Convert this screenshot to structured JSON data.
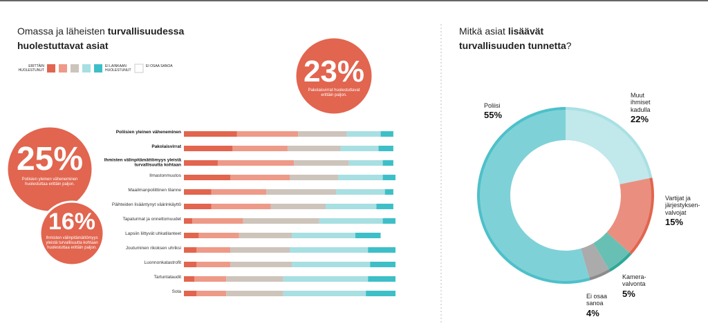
{
  "chart_data": [
    {
      "type": "stacked-bar",
      "title": [
        "Omassa ja läheisten",
        "turvallisuudessa",
        "huolestuttavat asiat"
      ],
      "categories": [
        "Poliisien yleinen väheneminen",
        "Pakolaisvirrat",
        "Ihmisten välinpitämättömyys yleistä turvallisuutta kohtaan",
        "Ilmastonmuutos",
        "Maailmanpoliittinen tilanne",
        "Päihteiden lisääntynyt väärinkäyttö",
        "Tapaturmat ja onnettomuudet",
        "Lapsiin liittyvät uhkatilanteet",
        "Joutuminen rikoksen uhriksi",
        "Luonnonkatastrofit",
        "Tartuntataudit",
        "Sota"
      ],
      "series": [
        {
          "name": "ERITTÄIN HUOLESTUNUT",
          "color": "#e2654f",
          "values": [
            25,
            23,
            16,
            22,
            13,
            13,
            4,
            7,
            6,
            6,
            5,
            6
          ]
        },
        {
          "color": "#ee9a88",
          "values": [
            29,
            26,
            36,
            28,
            26,
            28,
            24,
            19,
            16,
            16,
            15,
            14
          ]
        },
        {
          "color": "#cdc4bb",
          "values": [
            23,
            25,
            26,
            23,
            33,
            26,
            36,
            25,
            28,
            29,
            27,
            27
          ]
        },
        {
          "color": "#a7dfe2",
          "values": [
            16,
            18,
            16,
            21,
            23,
            24,
            30,
            30,
            37,
            37,
            40,
            39
          ]
        },
        {
          "name": "EI LAINKAAN HUOLESTUNUT",
          "color": "#3ebfc8",
          "values": [
            6,
            7,
            5,
            6,
            4,
            8,
            6,
            12,
            13,
            12,
            13,
            14
          ]
        },
        {
          "name": "EI OSAA SANOA",
          "color": "#ffffff",
          "values": [
            1,
            1,
            1,
            0,
            1,
            1,
            0,
            7,
            0,
            0,
            0,
            0
          ]
        }
      ],
      "annotations": [
        {
          "big": "23%",
          "text": "Pakolaisvirrat huolestuttavat erittäin paljon."
        },
        {
          "big": "25%",
          "text": "Poliisien yleinen väheneminen huolestuttaa erittäin paljon."
        },
        {
          "big": "16%",
          "text": "Ihmisten välinpitämättömyys yleistä turvallisuutta kohtaan huolestuttaa erittäin paljon."
        }
      ]
    },
    {
      "type": "donut",
      "title": [
        "Mitkä asiat",
        "lisäävät",
        "turvallisuuden tunnetta",
        "?"
      ],
      "categories": [
        "Muut ihmiset kadulla",
        "Vartijat ja järjestyksen-valvojat",
        "Kamera-valvonta",
        "Ei osaa sanoa",
        "Poliisi"
      ],
      "values": [
        22,
        15,
        5,
        4,
        55
      ],
      "value_labels": [
        "22%",
        "15%",
        "5%",
        "4%",
        "55%"
      ],
      "colors": [
        "#a9e0e3",
        "#e2654f",
        "#2ea897",
        "#8b8b8b",
        "#4ec0c9"
      ]
    }
  ]
}
